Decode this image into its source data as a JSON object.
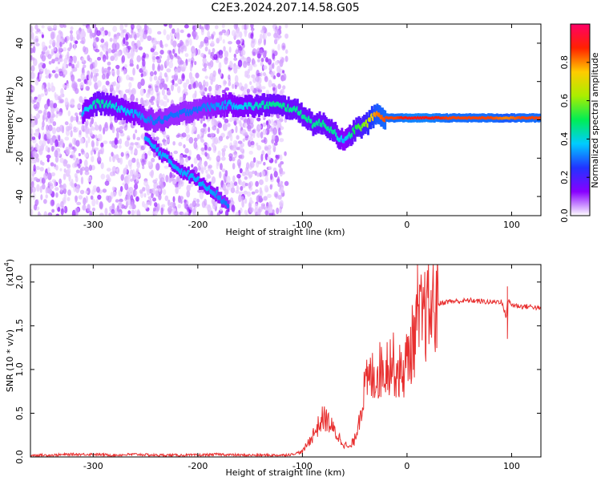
{
  "title": "C2E3.2024.207.14.58.G05",
  "chart_data": [
    {
      "type": "heatmap",
      "name": "spectrogram",
      "xlabel": "Height of straight line (km)",
      "ylabel": "Frequency (Hz)",
      "xlim": [
        -360,
        128
      ],
      "ylim": [
        -50,
        50
      ],
      "xticks": [
        -300,
        -200,
        -100,
        0,
        100
      ],
      "yticks": [
        -40,
        -20,
        0,
        20,
        40
      ],
      "colorbar": {
        "label": "Normalized spectral amplitude",
        "range": [
          0,
          1
        ],
        "ticks": [
          "0.0",
          "0.2",
          "0.4",
          "0.6",
          "0.8"
        ],
        "tick_values": [
          0,
          0.2,
          0.4,
          0.6,
          0.8
        ],
        "colormap": [
          "#ffffff",
          "#8800ff",
          "#2233ff",
          "#00ccff",
          "#00ee55",
          "#aaee00",
          "#ffcc00",
          "#ff2200",
          "#ff0066"
        ]
      },
      "ridge_track": [
        {
          "x": -310,
          "f": 4,
          "a": 0.35
        },
        {
          "x": -295,
          "f": 9,
          "a": 0.45
        },
        {
          "x": -280,
          "f": 7,
          "a": 0.4
        },
        {
          "x": -260,
          "f": 3,
          "a": 0.35
        },
        {
          "x": -240,
          "f": -1,
          "a": 0.3
        },
        {
          "x": -200,
          "f": 6,
          "a": 0.3
        },
        {
          "x": -170,
          "f": 8,
          "a": 0.35
        },
        {
          "x": -150,
          "f": 7,
          "a": 0.4
        },
        {
          "x": -130,
          "f": 8,
          "a": 0.45
        },
        {
          "x": -110,
          "f": 6,
          "a": 0.45
        },
        {
          "x": -100,
          "f": 3,
          "a": 0.45
        },
        {
          "x": -90,
          "f": -2,
          "a": 0.45
        },
        {
          "x": -80,
          "f": -2,
          "a": 0.45
        },
        {
          "x": -70,
          "f": -6,
          "a": 0.45
        },
        {
          "x": -60,
          "f": -12,
          "a": 0.35
        },
        {
          "x": -50,
          "f": -5,
          "a": 0.5
        },
        {
          "x": -40,
          "f": -3,
          "a": 0.6
        },
        {
          "x": -30,
          "f": 3,
          "a": 0.8
        },
        {
          "x": -20,
          "f": 1,
          "a": 0.85
        },
        {
          "x": -10,
          "f": 1,
          "a": 0.85
        },
        {
          "x": 0,
          "f": 1,
          "a": 0.9
        },
        {
          "x": 20,
          "f": 1,
          "a": 0.9
        },
        {
          "x": 40,
          "f": 1,
          "a": 0.85
        },
        {
          "x": 60,
          "f": 1,
          "a": 0.85
        },
        {
          "x": 80,
          "f": 1,
          "a": 0.85
        },
        {
          "x": 95,
          "f": 1,
          "a": 0.8
        },
        {
          "x": 110,
          "f": 1,
          "a": 0.85
        },
        {
          "x": 128,
          "f": 1,
          "a": 0.85
        }
      ],
      "secondary_track": [
        {
          "x": -250,
          "f": -10,
          "a": 0.35
        },
        {
          "x": -220,
          "f": -25,
          "a": 0.35
        },
        {
          "x": -190,
          "f": -35,
          "a": 0.35
        },
        {
          "x": -170,
          "f": -45,
          "a": 0.3
        }
      ]
    },
    {
      "type": "line",
      "name": "snr",
      "xlabel": "Height of straight line (km)",
      "ylabel": "SNR (10 * v/v)",
      "ylabel_multiplier": "(x10",
      "ylabel_multiplier_exp": "4",
      "ylabel_multiplier_close": ")",
      "xlim": [
        -360,
        128
      ],
      "ylim": [
        0,
        2.2
      ],
      "xticks": [
        -300,
        -200,
        -100,
        0,
        100
      ],
      "yticks": [
        "0.0",
        "0.5",
        "1.0",
        "1.5",
        "2.0"
      ],
      "ytick_values": [
        0,
        0.5,
        1.0,
        1.5,
        2.0
      ],
      "color": "#e83030",
      "x": [
        -360,
        -340,
        -320,
        -300,
        -280,
        -260,
        -240,
        -220,
        -200,
        -180,
        -160,
        -140,
        -120,
        -110,
        -100,
        -95,
        -90,
        -85,
        -80,
        -75,
        -70,
        -65,
        -60,
        -55,
        -50,
        -45,
        -40,
        -35,
        -30,
        -25,
        -20,
        -15,
        -10,
        -5,
        0,
        5,
        10,
        15,
        20,
        25,
        30,
        40,
        50,
        60,
        70,
        80,
        90,
        95,
        96,
        100,
        110,
        120,
        128
      ],
      "y": [
        0.02,
        0.02,
        0.03,
        0.03,
        0.02,
        0.03,
        0.02,
        0.02,
        0.02,
        0.03,
        0.02,
        0.02,
        0.02,
        0.03,
        0.06,
        0.15,
        0.25,
        0.35,
        0.45,
        0.4,
        0.3,
        0.22,
        0.15,
        0.1,
        0.2,
        0.5,
        0.8,
        0.9,
        0.95,
        1.0,
        1.05,
        1.1,
        1.0,
        0.95,
        1.1,
        1.3,
        1.5,
        1.6,
        1.65,
        1.7,
        1.75,
        1.78,
        1.78,
        1.79,
        1.78,
        1.77,
        1.78,
        1.6,
        1.8,
        1.74,
        1.72,
        1.72,
        1.69
      ],
      "spikes": [
        {
          "x": 10,
          "y": 2.2
        },
        {
          "x": 96,
          "y": 1.95
        },
        {
          "x": 96,
          "y": 1.35
        }
      ]
    }
  ]
}
